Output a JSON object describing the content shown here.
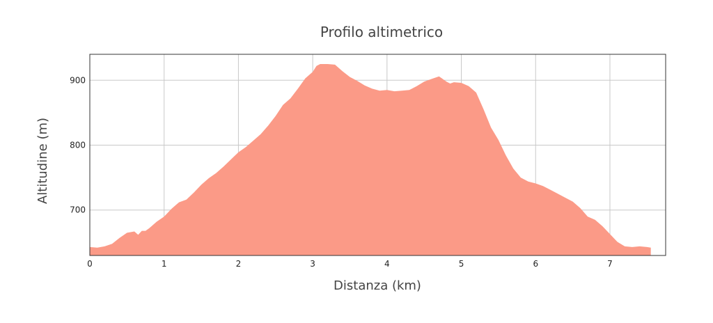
{
  "chart_data": {
    "type": "area",
    "title": "Profilo altimetrico",
    "xlabel": "Distanza (km)",
    "ylabel": "Altitudine (m)",
    "xlim": [
      0,
      7.75
    ],
    "ylim": [
      630,
      940
    ],
    "xticks": [
      0,
      1,
      2,
      3,
      4,
      5,
      6,
      7
    ],
    "yticks": [
      700,
      800,
      900
    ],
    "grid": true,
    "fill_color": "#fb9a87",
    "series": [
      {
        "x": [
          0,
          0.1,
          0.2,
          0.3,
          0.4,
          0.5,
          0.6,
          0.65,
          0.7,
          0.75,
          0.8,
          0.9,
          1.0,
          1.1,
          1.2,
          1.3,
          1.4,
          1.5,
          1.6,
          1.7,
          1.8,
          1.9,
          2.0,
          2.1,
          2.2,
          2.3,
          2.4,
          2.5,
          2.6,
          2.7,
          2.8,
          2.9,
          3.0,
          3.05,
          3.1,
          3.2,
          3.3,
          3.4,
          3.5,
          3.6,
          3.7,
          3.8,
          3.9,
          4.0,
          4.1,
          4.2,
          4.3,
          4.4,
          4.5,
          4.6,
          4.7,
          4.8,
          4.85,
          4.9,
          5.0,
          5.1,
          5.2,
          5.3,
          5.4,
          5.5,
          5.6,
          5.7,
          5.8,
          5.9,
          6.0,
          6.1,
          6.2,
          6.3,
          6.4,
          6.5,
          6.6,
          6.7,
          6.8,
          6.9,
          7.0,
          7.1,
          7.2,
          7.3,
          7.4,
          7.5,
          7.55
        ],
        "y": [
          643,
          642,
          644,
          648,
          657,
          665,
          667,
          662,
          668,
          668,
          672,
          682,
          690,
          702,
          712,
          716,
          727,
          739,
          749,
          757,
          767,
          778,
          789,
          797,
          807,
          817,
          830,
          845,
          862,
          872,
          887,
          903,
          913,
          922,
          925,
          925,
          924,
          914,
          905,
          899,
          892,
          887,
          884,
          885,
          883,
          884,
          885,
          891,
          898,
          902,
          906,
          898,
          895,
          897,
          896,
          891,
          881,
          855,
          827,
          808,
          784,
          764,
          750,
          744,
          741,
          737,
          731,
          725,
          719,
          713,
          703,
          690,
          685,
          675,
          663,
          651,
          644,
          643,
          644,
          643,
          642
        ]
      }
    ]
  }
}
